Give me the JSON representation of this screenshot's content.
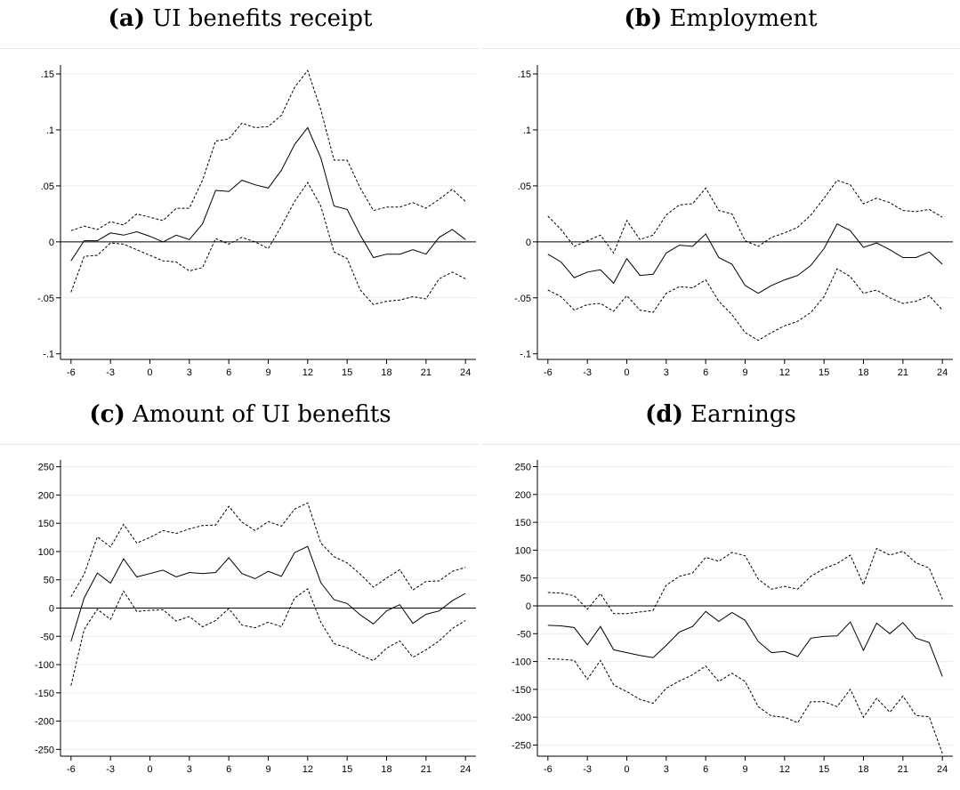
{
  "chart_data": [
    {
      "type": "line",
      "panel_tag": "(a)",
      "title": "UI benefits receipt",
      "x": [
        -6,
        -5,
        -4,
        -3,
        -2,
        -1,
        0,
        1,
        2,
        3,
        4,
        5,
        6,
        7,
        8,
        9,
        10,
        11,
        12,
        13,
        14,
        15,
        16,
        17,
        18,
        19,
        20,
        21,
        22,
        23,
        24
      ],
      "series": [
        {
          "role": "upper-ci",
          "values": [
            0.01,
            0.014,
            0.011,
            0.018,
            0.015,
            0.025,
            0.022,
            0.019,
            0.03,
            0.03,
            0.055,
            0.09,
            0.092,
            0.106,
            0.102,
            0.103,
            0.113,
            0.138,
            0.153,
            0.118,
            0.073,
            0.073,
            0.048,
            0.028,
            0.031,
            0.031,
            0.035,
            0.03,
            0.038,
            0.047,
            0.036
          ]
        },
        {
          "role": "estimate",
          "values": [
            -0.017,
            0.001,
            0.001,
            0.008,
            0.006,
            0.009,
            0.005,
            0.0,
            0.006,
            0.002,
            0.016,
            0.046,
            0.045,
            0.055,
            0.051,
            0.048,
            0.064,
            0.087,
            0.102,
            0.075,
            0.032,
            0.029,
            0.006,
            -0.014,
            -0.011,
            -0.011,
            -0.007,
            -0.011,
            0.004,
            0.011,
            0.002
          ]
        },
        {
          "role": "lower-ci",
          "values": [
            -0.045,
            -0.013,
            -0.012,
            -0.001,
            -0.002,
            -0.007,
            -0.012,
            -0.017,
            -0.018,
            -0.026,
            -0.023,
            0.003,
            -0.002,
            0.004,
            0.0,
            -0.006,
            0.014,
            0.036,
            0.053,
            0.032,
            -0.009,
            -0.015,
            -0.043,
            -0.056,
            -0.053,
            -0.052,
            -0.049,
            -0.051,
            -0.033,
            -0.027,
            -0.033
          ]
        }
      ],
      "xticks": [
        -6,
        -3,
        0,
        3,
        6,
        9,
        12,
        15,
        18,
        21,
        24
      ],
      "yticks": [
        -0.1,
        -0.05,
        0,
        0.05,
        0.1,
        0.15
      ],
      "ytick_labels": [
        "-.1",
        "-.05",
        "0",
        ".05",
        ".1",
        ".15"
      ],
      "ylim": [
        -0.105,
        0.158
      ],
      "zero_line": true,
      "grid": true
    },
    {
      "type": "line",
      "panel_tag": "(b)",
      "title": "Employment",
      "x": [
        -6,
        -5,
        -4,
        -3,
        -2,
        -1,
        0,
        1,
        2,
        3,
        4,
        5,
        6,
        7,
        8,
        9,
        10,
        11,
        12,
        13,
        14,
        15,
        16,
        17,
        18,
        19,
        20,
        21,
        22,
        23,
        24
      ],
      "series": [
        {
          "role": "upper-ci",
          "values": [
            0.023,
            0.011,
            -0.004,
            0.001,
            0.006,
            -0.01,
            0.019,
            0.002,
            0.006,
            0.024,
            0.033,
            0.034,
            0.048,
            0.028,
            0.025,
            0.001,
            -0.004,
            0.004,
            0.008,
            0.013,
            0.024,
            0.039,
            0.055,
            0.051,
            0.034,
            0.039,
            0.035,
            0.028,
            0.027,
            0.029,
            0.022
          ]
        },
        {
          "role": "estimate",
          "values": [
            -0.011,
            -0.018,
            -0.032,
            -0.027,
            -0.025,
            -0.037,
            -0.015,
            -0.03,
            -0.029,
            -0.01,
            -0.003,
            -0.004,
            0.007,
            -0.014,
            -0.02,
            -0.039,
            -0.046,
            -0.039,
            -0.034,
            -0.03,
            -0.021,
            -0.006,
            0.016,
            0.01,
            -0.005,
            -0.001,
            -0.007,
            -0.014,
            -0.014,
            -0.009,
            -0.02
          ]
        },
        {
          "role": "lower-ci",
          "values": [
            -0.043,
            -0.049,
            -0.061,
            -0.056,
            -0.055,
            -0.062,
            -0.048,
            -0.061,
            -0.063,
            -0.046,
            -0.04,
            -0.041,
            -0.034,
            -0.053,
            -0.065,
            -0.081,
            -0.088,
            -0.081,
            -0.075,
            -0.071,
            -0.063,
            -0.049,
            -0.024,
            -0.031,
            -0.046,
            -0.043,
            -0.05,
            -0.055,
            -0.053,
            -0.048,
            -0.061
          ]
        }
      ],
      "xticks": [
        -6,
        -3,
        0,
        3,
        6,
        9,
        12,
        15,
        18,
        21,
        24
      ],
      "yticks": [
        -0.1,
        -0.05,
        0,
        0.05,
        0.1,
        0.15
      ],
      "ytick_labels": [
        "-.1",
        "-.05",
        "0",
        ".05",
        ".1",
        ".15"
      ],
      "ylim": [
        -0.105,
        0.158
      ],
      "zero_line": true,
      "grid": true
    },
    {
      "type": "line",
      "panel_tag": "(c)",
      "title": "Amount of UI benefits",
      "x": [
        -6,
        -5,
        -4,
        -3,
        -2,
        -1,
        0,
        1,
        2,
        3,
        4,
        5,
        6,
        7,
        8,
        9,
        10,
        11,
        12,
        13,
        14,
        15,
        16,
        17,
        18,
        19,
        20,
        21,
        22,
        23,
        24
      ],
      "series": [
        {
          "role": "upper-ci",
          "values": [
            20,
            60,
            126,
            108,
            148,
            115,
            125,
            137,
            132,
            140,
            146,
            147,
            180,
            152,
            137,
            153,
            145,
            175,
            186,
            115,
            91,
            80,
            60,
            37,
            53,
            68,
            32,
            47,
            48,
            65,
            72
          ]
        },
        {
          "role": "estimate",
          "values": [
            -59,
            18,
            62,
            44,
            87,
            55,
            61,
            67,
            55,
            63,
            61,
            63,
            89,
            61,
            52,
            65,
            56,
            98,
            109,
            45,
            15,
            8,
            -12,
            -28,
            -5,
            6,
            -27,
            -11,
            -5,
            13,
            26
          ]
        },
        {
          "role": "lower-ci",
          "values": [
            -137,
            -38,
            -2,
            -20,
            30,
            -6,
            -4,
            -3,
            -23,
            -15,
            -33,
            -22,
            -1,
            -30,
            -35,
            -25,
            -33,
            18,
            34,
            -25,
            -63,
            -70,
            -83,
            -93,
            -71,
            -58,
            -87,
            -74,
            -58,
            -36,
            -22
          ]
        }
      ],
      "xticks": [
        -6,
        -3,
        0,
        3,
        6,
        9,
        12,
        15,
        18,
        21,
        24
      ],
      "yticks": [
        -250,
        -200,
        -150,
        -100,
        -50,
        0,
        50,
        100,
        150,
        200,
        250
      ],
      "ytick_labels": [
        "-250",
        "-200",
        "-150",
        "-100",
        "-50",
        "0",
        "50",
        "100",
        "150",
        "200",
        "250"
      ],
      "ylim": [
        -262,
        262
      ],
      "zero_line": true,
      "grid": true
    },
    {
      "type": "line",
      "panel_tag": "(d)",
      "title": "Earnings",
      "x": [
        -6,
        -5,
        -4,
        -3,
        -2,
        -1,
        0,
        1,
        2,
        3,
        4,
        5,
        6,
        7,
        8,
        9,
        10,
        11,
        12,
        13,
        14,
        15,
        16,
        17,
        18,
        19,
        20,
        21,
        22,
        23,
        24
      ],
      "series": [
        {
          "role": "upper-ci",
          "values": [
            24,
            23,
            18,
            -6,
            22,
            -14,
            -14,
            -11,
            -8,
            37,
            53,
            59,
            87,
            80,
            96,
            90,
            48,
            30,
            35,
            30,
            53,
            67,
            76,
            91,
            38,
            103,
            91,
            98,
            77,
            68,
            12
          ]
        },
        {
          "role": "estimate",
          "values": [
            -35,
            -36,
            -39,
            -70,
            -37,
            -79,
            -84,
            -89,
            -93,
            -71,
            -47,
            -37,
            -10,
            -28,
            -12,
            -26,
            -64,
            -84,
            -82,
            -91,
            -58,
            -55,
            -54,
            -29,
            -80,
            -31,
            -50,
            -30,
            -58,
            -66,
            -127
          ]
        },
        {
          "role": "lower-ci",
          "values": [
            -95,
            -96,
            -98,
            -132,
            -98,
            -142,
            -154,
            -168,
            -175,
            -148,
            -135,
            -124,
            -108,
            -136,
            -121,
            -136,
            -181,
            -198,
            -200,
            -210,
            -172,
            -172,
            -181,
            -150,
            -200,
            -166,
            -191,
            -162,
            -197,
            -199,
            -265
          ]
        }
      ],
      "xticks": [
        -6,
        -3,
        0,
        3,
        6,
        9,
        12,
        15,
        18,
        21,
        24
      ],
      "yticks": [
        -250,
        -200,
        -150,
        -100,
        -50,
        0,
        50,
        100,
        150,
        200,
        250
      ],
      "ytick_labels": [
        "-250",
        "-200",
        "-150",
        "-100",
        "-50",
        "0",
        "50",
        "100",
        "150",
        "200",
        "250"
      ],
      "ylim": [
        -270,
        262
      ],
      "zero_line": true,
      "grid": true
    }
  ]
}
